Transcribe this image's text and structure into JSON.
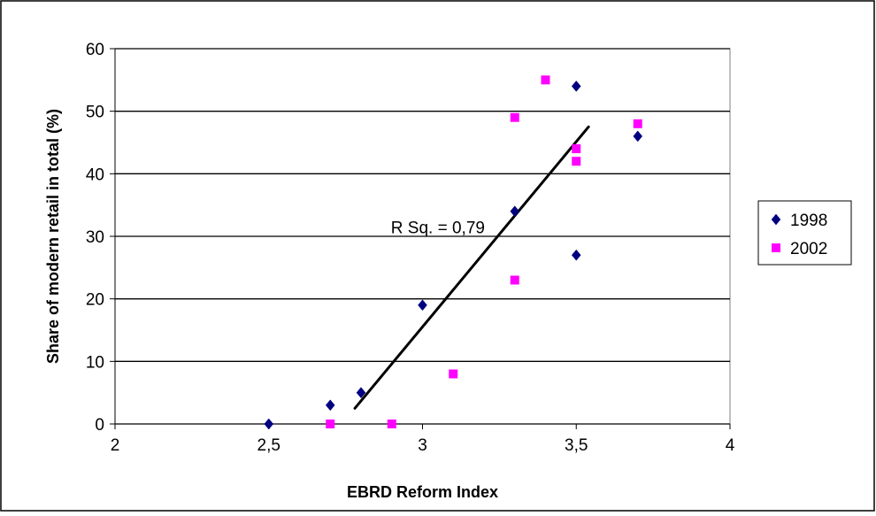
{
  "chart_data": {
    "type": "scatter",
    "title": "",
    "xlabel": "EBRD Reform Index",
    "ylabel": "Share of modern retail in total (%)",
    "xlim": [
      2,
      4
    ],
    "ylim": [
      0,
      60
    ],
    "x_ticks": [
      2,
      2.5,
      3,
      3.5,
      4
    ],
    "x_tick_labels": [
      "2",
      "2,5",
      "3",
      "3,5",
      "4"
    ],
    "y_ticks": [
      0,
      10,
      20,
      30,
      40,
      50,
      60
    ],
    "y_tick_labels": [
      "0",
      "10",
      "20",
      "30",
      "40",
      "50",
      "60"
    ],
    "grid": "horizontal",
    "legend_position": "right",
    "series": [
      {
        "name": "1998",
        "marker": "diamond",
        "color": "#000080",
        "points": [
          [
            2.5,
            0
          ],
          [
            2.7,
            3
          ],
          [
            2.8,
            5
          ],
          [
            3.0,
            19
          ],
          [
            3.3,
            34
          ],
          [
            3.5,
            54
          ],
          [
            3.5,
            27
          ],
          [
            3.7,
            46
          ]
        ]
      },
      {
        "name": "2002",
        "marker": "square",
        "color": "#ff00ff",
        "points": [
          [
            2.7,
            0
          ],
          [
            2.9,
            0
          ],
          [
            3.1,
            8
          ],
          [
            3.3,
            23
          ],
          [
            3.3,
            49
          ],
          [
            3.4,
            55
          ],
          [
            3.5,
            44
          ],
          [
            3.5,
            42
          ],
          [
            3.7,
            48
          ]
        ]
      }
    ],
    "trendline": {
      "x": [
        2.78,
        3.54
      ],
      "y": [
        2.5,
        47.5
      ],
      "color": "#000000"
    },
    "annotations": [
      {
        "text": "R Sq. = 0,79",
        "x": 3.05,
        "y": 31.5
      }
    ]
  }
}
